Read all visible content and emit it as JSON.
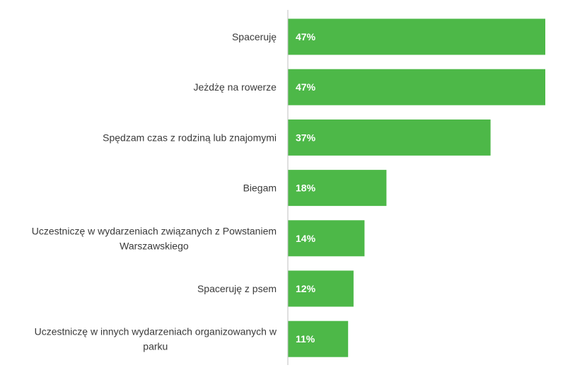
{
  "chart_data": {
    "type": "bar",
    "orientation": "horizontal",
    "categories": [
      "Spaceruję",
      "Jeżdżę na rowerze",
      "Spędzam czas z rodziną lub znajomymi",
      "Biegam",
      "Uczestniczę w wydarzeniach związanych z Powstaniem Warszawskiego",
      "Spaceruję z psem",
      "Uczestniczę w innych wydarzeniach organizowanych w parku"
    ],
    "category_lines": [
      [
        "Spaceruję"
      ],
      [
        "Jeżdżę na rowerze"
      ],
      [
        "Spędzam czas z rodziną lub znajomymi"
      ],
      [
        "Biegam"
      ],
      [
        "Uczestniczę w wydarzeniach związanych z Powstaniem",
        "Warszawskiego"
      ],
      [
        "Spaceruję z psem"
      ],
      [
        "Uczestniczę w innych wydarzeniach organizowanych w",
        "parku"
      ]
    ],
    "values": [
      47,
      47,
      37,
      18,
      14,
      12,
      11
    ],
    "value_labels": [
      "47%",
      "47%",
      "37%",
      "18%",
      "14%",
      "12%",
      "11%"
    ],
    "unit": "%",
    "bar_color": "#4db848",
    "axis_color": "#bfbfbf",
    "label_color": "#3a3a3a",
    "value_label_color": "#ffffff",
    "title": "",
    "xlabel": "",
    "ylabel": "",
    "legend": "none",
    "grid": false
  }
}
